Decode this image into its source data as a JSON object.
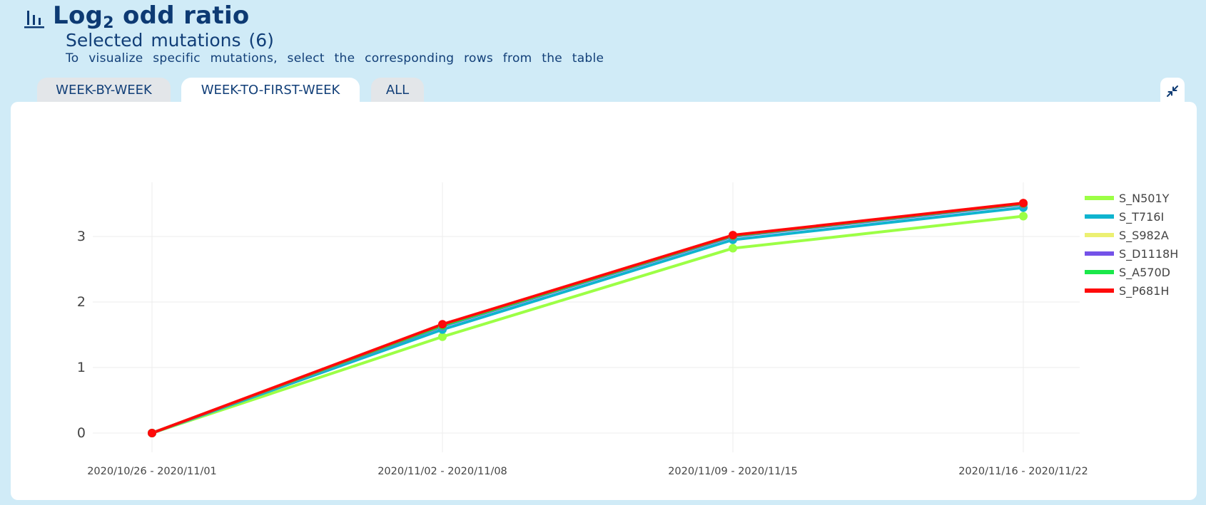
{
  "header": {
    "title_main": "Log",
    "title_sub": "2",
    "title_rest": " odd ratio",
    "subtitle": "Selected mutations (6)",
    "description": "To visualize specific mutations, select the corresponding rows from the table"
  },
  "tabs": [
    {
      "label": "WEEK-BY-WEEK",
      "active": false
    },
    {
      "label": "WEEK-TO-FIRST-WEEK",
      "active": true
    },
    {
      "label": "ALL",
      "active": false
    }
  ],
  "icons": {
    "header": "bar-chart-icon",
    "collapse": "collapse-arrows-icon"
  },
  "chart_data": {
    "type": "line",
    "x": [
      "2020/10/26 - 2020/11/01",
      "2020/11/02 - 2020/11/08",
      "2020/11/09 - 2020/11/15",
      "2020/11/16 - 2020/11/22"
    ],
    "ylim": [
      -0.25,
      3.85
    ],
    "yticks": [
      0,
      1,
      2,
      3
    ],
    "grid": true,
    "legend_position": "right",
    "series": [
      {
        "name": "S_N501Y",
        "color": "#9cff45",
        "values": [
          0,
          1.47,
          2.82,
          3.31
        ]
      },
      {
        "name": "S_T716I",
        "color": "#0fb4cf",
        "values": [
          0,
          1.58,
          2.95,
          3.44
        ]
      },
      {
        "name": "S_S982A",
        "color": "#ecf072",
        "values": [
          0,
          1.63,
          3.0,
          3.49
        ]
      },
      {
        "name": "S_D1118H",
        "color": "#7452e8",
        "values": [
          0,
          1.63,
          3.0,
          3.49
        ]
      },
      {
        "name": "S_A570D",
        "color": "#1ae84a",
        "values": [
          0,
          1.64,
          3.01,
          3.5
        ]
      },
      {
        "name": "S_P681H",
        "color": "#ff0a0a",
        "values": [
          0,
          1.66,
          3.02,
          3.51
        ]
      }
    ]
  }
}
